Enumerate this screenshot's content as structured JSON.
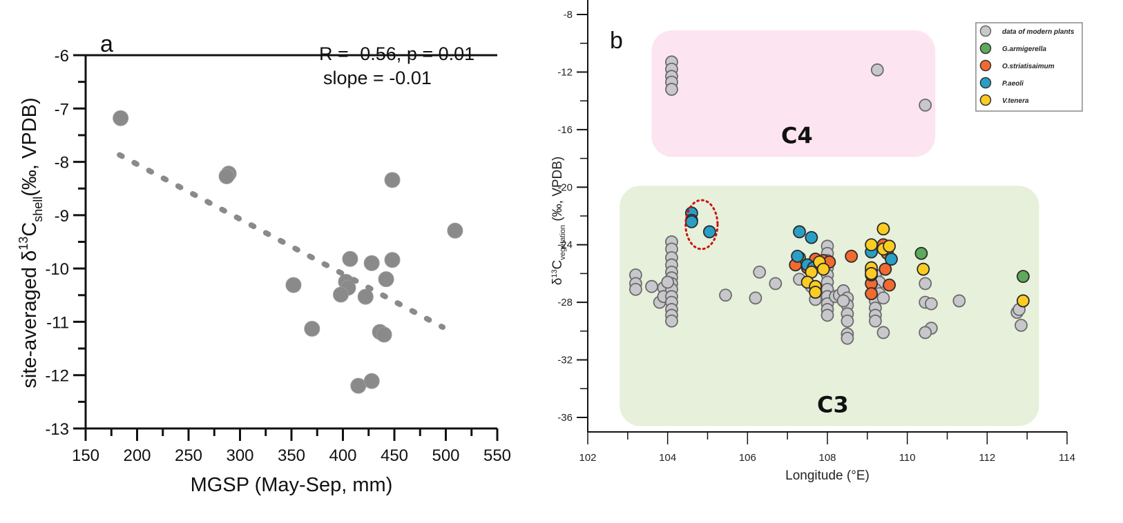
{
  "chart_data": [
    {
      "panel": "a",
      "type": "scatter",
      "panel_label": "a",
      "title": "",
      "xlabel": "MGSP (May-Sep, mm)",
      "ylabel_parts": {
        "prefix": "site-averaged δ",
        "sup": "13",
        "main": "C",
        "sub": "shell",
        "suffix": "(‰, VPDB)"
      },
      "xlim": [
        150,
        550
      ],
      "ylim": [
        -13,
        -6
      ],
      "x_ticks": [
        150,
        200,
        250,
        300,
        350,
        400,
        450,
        500,
        550
      ],
      "y_ticks": [
        -13,
        -12,
        -11,
        -10,
        -9,
        -8,
        -7,
        -6
      ],
      "annotations": [
        "R = -0.56, p = 0.01",
        "slope = -0.01"
      ],
      "marker_color": "#8a8a8a",
      "trendline": {
        "style": "dotted",
        "x": [
          183,
          497
        ],
        "y": [
          -7.87,
          -11.1
        ]
      },
      "points": [
        {
          "x": 184,
          "y": -7.18
        },
        {
          "x": 289,
          "y": -8.22
        },
        {
          "x": 287,
          "y": -8.27
        },
        {
          "x": 448,
          "y": -8.34
        },
        {
          "x": 509,
          "y": -9.29
        },
        {
          "x": 407,
          "y": -9.82
        },
        {
          "x": 428,
          "y": -9.9
        },
        {
          "x": 448,
          "y": -9.84
        },
        {
          "x": 352,
          "y": -10.31
        },
        {
          "x": 403,
          "y": -10.25
        },
        {
          "x": 405,
          "y": -10.36
        },
        {
          "x": 398,
          "y": -10.49
        },
        {
          "x": 422,
          "y": -10.53
        },
        {
          "x": 442,
          "y": -10.2
        },
        {
          "x": 370,
          "y": -11.13
        },
        {
          "x": 436,
          "y": -11.19
        },
        {
          "x": 440,
          "y": -11.24
        },
        {
          "x": 415,
          "y": -12.2
        },
        {
          "x": 428,
          "y": -12.11
        }
      ]
    },
    {
      "panel": "b",
      "type": "scatter",
      "panel_label": "b",
      "title": "",
      "xlabel": "Longitude (°E)",
      "ylabel_parts": {
        "prefix": "δ",
        "sup": "13",
        "main": "C",
        "sub": "vegetation",
        "suffix": " (‰, VPDB)"
      },
      "xlim": [
        102,
        114
      ],
      "ylim": [
        -37,
        -8
      ],
      "x_ticks": [
        102,
        104,
        106,
        108,
        110,
        112,
        114
      ],
      "y_ticks": [
        -8,
        -12,
        -16,
        -20,
        -24,
        -28,
        -32,
        -36
      ],
      "regions": [
        {
          "label": "C4",
          "color": "#fce4f0",
          "x": [
            103.6,
            110.7
          ],
          "y": [
            -17.9,
            -9.1
          ]
        },
        {
          "label": "C3",
          "color": "#e6f0da",
          "x": [
            102.8,
            113.3
          ],
          "y": [
            -36.6,
            -19.9
          ]
        }
      ],
      "highlight_circle": {
        "style": "dotted",
        "color": "#cc1111",
        "center": [
          104.85,
          -22.6
        ],
        "radius_x_units": 0.4,
        "radius_y_units": 1.7
      },
      "legend": {
        "position": "top-right",
        "entries": [
          {
            "label": "data of modern plants",
            "color": "#c8c8cc"
          },
          {
            "label": "G.armigerella",
            "color": "#5daa5a"
          },
          {
            "label": "O.striatisaimum",
            "color": "#f26a30"
          },
          {
            "label": "P.aeoli",
            "color": "#2a9fc6"
          },
          {
            "label": "V.tenera",
            "color": "#fccc22"
          }
        ]
      },
      "series": [
        {
          "name": "data of modern plants",
          "color": "#c8c8cc",
          "points": [
            [
              104.1,
              -11.3
            ],
            [
              104.1,
              -11.8
            ],
            [
              104.1,
              -12.3
            ],
            [
              104.1,
              -12.7
            ],
            [
              104.1,
              -13.2
            ],
            [
              109.25,
              -11.85
            ],
            [
              110.45,
              -14.3
            ],
            [
              103.2,
              -26.1
            ],
            [
              103.2,
              -26.7
            ],
            [
              103.2,
              -27.1
            ],
            [
              103.6,
              -26.9
            ],
            [
              103.9,
              -27.0
            ],
            [
              103.8,
              -28.0
            ],
            [
              103.9,
              -27.6
            ],
            [
              104.1,
              -23.8
            ],
            [
              104.1,
              -24.3
            ],
            [
              104.1,
              -24.9
            ],
            [
              104.1,
              -25.4
            ],
            [
              104.1,
              -25.9
            ],
            [
              104.1,
              -26.3
            ],
            [
              104.1,
              -26.7
            ],
            [
              104.1,
              -27.1
            ],
            [
              104.1,
              -27.6
            ],
            [
              104.1,
              -28.0
            ],
            [
              104.1,
              -28.5
            ],
            [
              104.1,
              -28.9
            ],
            [
              104.1,
              -29.3
            ],
            [
              104.0,
              -26.6
            ],
            [
              105.45,
              -27.5
            ],
            [
              106.2,
              -27.7
            ],
            [
              106.3,
              -25.9
            ],
            [
              106.7,
              -26.7
            ],
            [
              107.3,
              -26.4
            ],
            [
              107.6,
              -26.9
            ],
            [
              107.7,
              -27.8
            ],
            [
              107.9,
              -25.2
            ],
            [
              108.0,
              -24.1
            ],
            [
              108.0,
              -24.6
            ],
            [
              108.0,
              -25.1
            ],
            [
              108.0,
              -25.6
            ],
            [
              108.0,
              -26.1
            ],
            [
              108.0,
              -26.6
            ],
            [
              108.0,
              -27.1
            ],
            [
              108.0,
              -27.6
            ],
            [
              108.0,
              -28.1
            ],
            [
              108.0,
              -28.5
            ],
            [
              108.0,
              -28.9
            ],
            [
              108.2,
              -27.6
            ],
            [
              108.3,
              -27.5
            ],
            [
              108.4,
              -27.2
            ],
            [
              108.5,
              -27.7
            ],
            [
              108.5,
              -28.2
            ],
            [
              108.5,
              -28.8
            ],
            [
              108.5,
              -29.3
            ],
            [
              108.5,
              -30.2
            ],
            [
              108.5,
              -30.5
            ],
            [
              108.4,
              -27.9
            ],
            [
              109.2,
              -26.1
            ],
            [
              109.3,
              -26.6
            ],
            [
              109.2,
              -27.1
            ],
            [
              109.3,
              -27.4
            ],
            [
              109.2,
              -27.9
            ],
            [
              109.2,
              -28.4
            ],
            [
              109.2,
              -28.9
            ],
            [
              109.2,
              -29.3
            ],
            [
              109.4,
              -27.7
            ],
            [
              109.4,
              -30.1
            ],
            [
              110.45,
              -26.7
            ],
            [
              110.45,
              -28.0
            ],
            [
              110.6,
              -28.1
            ],
            [
              110.6,
              -29.8
            ],
            [
              110.45,
              -30.1
            ],
            [
              111.3,
              -27.9
            ],
            [
              112.75,
              -28.7
            ],
            [
              112.8,
              -28.5
            ],
            [
              112.85,
              -29.6
            ]
          ]
        },
        {
          "name": "G.armigerella",
          "color": "#5daa5a",
          "points": [
            [
              110.35,
              -24.6
            ],
            [
              112.9,
              -26.2
            ],
            [
              107.3,
              -24.9
            ]
          ]
        },
        {
          "name": "O.striatisaimum",
          "color": "#f26a30",
          "points": [
            [
              107.2,
              -25.4
            ],
            [
              107.5,
              -25.6
            ],
            [
              107.7,
              -25.0
            ],
            [
              107.9,
              -25.1
            ],
            [
              108.05,
              -25.2
            ],
            [
              108.6,
              -24.8
            ],
            [
              109.1,
              -26.7
            ],
            [
              109.1,
              -27.4
            ],
            [
              109.4,
              -24.0
            ],
            [
              109.45,
              -25.7
            ],
            [
              109.55,
              -26.8
            ],
            [
              109.5,
              -24.6
            ]
          ]
        },
        {
          "name": "P.aeoli",
          "color": "#2a9fc6",
          "points": [
            [
              104.6,
              -21.8
            ],
            [
              104.6,
              -22.3
            ],
            [
              104.6,
              -22.4
            ],
            [
              105.05,
              -23.1
            ],
            [
              107.3,
              -23.1
            ],
            [
              107.6,
              -23.5
            ],
            [
              107.25,
              -24.8
            ],
            [
              107.5,
              -25.4
            ],
            [
              107.65,
              -25.6
            ],
            [
              109.1,
              -24.5
            ],
            [
              109.1,
              -25.8
            ],
            [
              109.1,
              -26.1
            ],
            [
              109.4,
              -22.9
            ],
            [
              109.6,
              -25.0
            ]
          ]
        },
        {
          "name": "V.tenera",
          "color": "#fccc22",
          "points": [
            [
              107.8,
              -25.2
            ],
            [
              107.6,
              -25.9
            ],
            [
              107.9,
              -25.7
            ],
            [
              107.5,
              -26.6
            ],
            [
              107.7,
              -26.9
            ],
            [
              107.7,
              -27.3
            ],
            [
              109.1,
              -24.0
            ],
            [
              109.1,
              -25.6
            ],
            [
              109.1,
              -26.0
            ],
            [
              109.4,
              -22.9
            ],
            [
              109.4,
              -24.3
            ],
            [
              109.55,
              -24.1
            ],
            [
              110.4,
              -25.7
            ],
            [
              112.9,
              -27.9
            ]
          ]
        }
      ]
    }
  ]
}
